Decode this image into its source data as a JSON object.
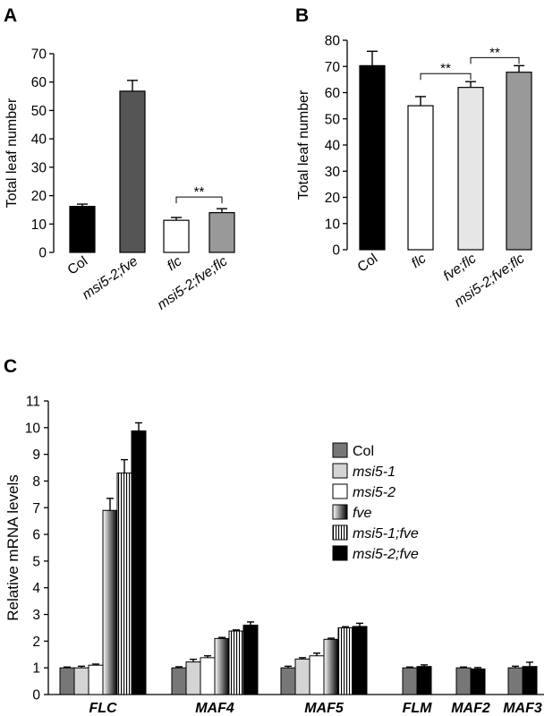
{
  "chart_data": [
    {
      "panel_label": "A",
      "type": "bar",
      "ylabel": "Total leaf number",
      "ylim": [
        0,
        70
      ],
      "yticks": [
        0,
        10,
        20,
        30,
        40,
        50,
        60,
        70
      ],
      "categories": [
        "Col",
        "msi5-2;fve",
        "flc",
        "msi5-2;fve;flc"
      ],
      "values": [
        16.2,
        56.8,
        11.3,
        14.0
      ],
      "errors": [
        0.8,
        3.8,
        1.0,
        1.4
      ],
      "fills": [
        "#000000",
        "#555555",
        "#ffffff",
        "#999999"
      ],
      "italic": [
        false,
        true,
        true,
        true
      ],
      "significance": [
        {
          "from": 2,
          "to": 3,
          "label": "**"
        }
      ]
    },
    {
      "panel_label": "B",
      "type": "bar",
      "ylabel": "Total leaf number",
      "ylim": [
        0,
        80
      ],
      "yticks": [
        0,
        10,
        20,
        30,
        40,
        50,
        60,
        70,
        80
      ],
      "categories": [
        "Col",
        "flc",
        "fve;flc",
        "msi5-2;fve;flc"
      ],
      "values": [
        70.3,
        55.0,
        62.0,
        67.8
      ],
      "errors": [
        5.5,
        3.5,
        2.2,
        2.5
      ],
      "fills": [
        "#000000",
        "#ffffff",
        "#e6e6e6",
        "#999999"
      ],
      "italic": [
        false,
        true,
        true,
        true
      ],
      "significance": [
        {
          "from": 1,
          "to": 2,
          "label": "**"
        },
        {
          "from": 2,
          "to": 3,
          "label": "**"
        }
      ]
    },
    {
      "panel_label": "C",
      "type": "bar",
      "ylabel": "Relative mRNA levels",
      "ylim": [
        0,
        11
      ],
      "yticks": [
        0,
        1,
        2,
        3,
        4,
        5,
        6,
        7,
        8,
        9,
        10,
        11
      ],
      "categories": [
        "FLC",
        "MAF4",
        "MAF5",
        "FLM",
        "MAF2",
        "MAF3"
      ],
      "series": [
        {
          "name": "Col",
          "values": [
            1.0,
            1.0,
            1.0,
            1.0,
            1.0,
            1.0
          ],
          "errors": [
            0.03,
            0.04,
            0.06,
            0.03,
            0.03,
            0.06
          ],
          "fill": "gray"
        },
        {
          "name": "msi5-1",
          "values": [
            1.0,
            1.22,
            1.33,
            null,
            null,
            null
          ],
          "errors": [
            0.06,
            0.1,
            0.05,
            null,
            null,
            null
          ],
          "fill": "light"
        },
        {
          "name": "msi5-2",
          "values": [
            1.1,
            1.38,
            1.45,
            null,
            null,
            null
          ],
          "errors": [
            0.04,
            0.07,
            0.1,
            null,
            null,
            null
          ],
          "fill": "white"
        },
        {
          "name": "fve",
          "values": [
            6.9,
            2.1,
            2.07,
            null,
            null,
            null
          ],
          "errors": [
            0.45,
            0.04,
            0.04,
            null,
            null,
            null
          ],
          "fill": "gradient"
        },
        {
          "name": "msi5-1;fve",
          "values": [
            8.3,
            2.38,
            2.5,
            null,
            null,
            null
          ],
          "errors": [
            0.5,
            0.04,
            0.04,
            null,
            null,
            null
          ],
          "fill": "stripes"
        },
        {
          "name": "msi5-2;fve",
          "values": [
            9.88,
            2.6,
            2.55,
            1.05,
            0.96,
            1.05
          ],
          "errors": [
            0.3,
            0.12,
            0.12,
            0.06,
            0.05,
            0.16
          ],
          "fill": "black"
        }
      ]
    }
  ]
}
